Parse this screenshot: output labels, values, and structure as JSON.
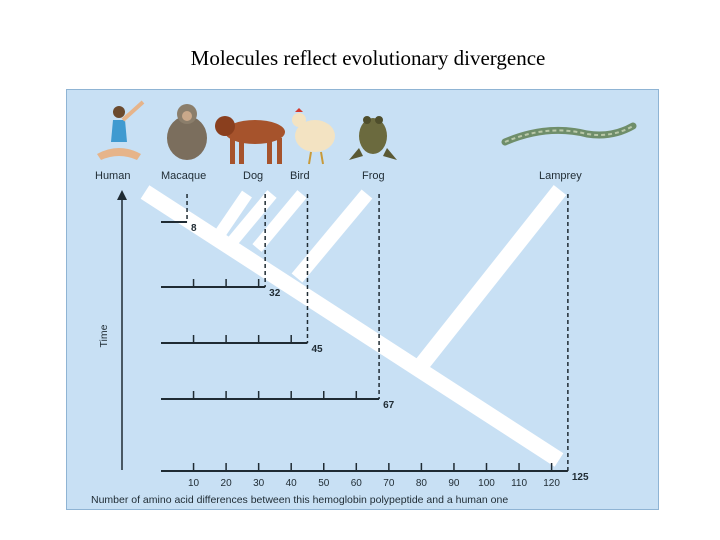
{
  "slide": {
    "title": "Molecules reflect evolutionary divergence"
  },
  "chart_data": {
    "type": "diagram",
    "species": [
      "Human",
      "Macaque",
      "Dog",
      "Bird",
      "Frog",
      "Lamprey"
    ],
    "differences": [
      {
        "species": "Macaque",
        "value": 8,
        "label": "8"
      },
      {
        "species": "Dog",
        "value": 32,
        "label": "32"
      },
      {
        "species": "Bird",
        "value": 45,
        "label": "45"
      },
      {
        "species": "Frog",
        "value": 67,
        "label": "67"
      },
      {
        "species": "Lamprey",
        "value": 125,
        "label": "125"
      }
    ],
    "x_ticks": [
      "10",
      "20",
      "30",
      "40",
      "50",
      "60",
      "70",
      "80",
      "90",
      "100",
      "110",
      "120"
    ],
    "xlabel": "Number of amino acid differences between this hemoglobin polypeptide and a human one",
    "ylabel": "Time",
    "xlim": [
      0,
      125
    ]
  },
  "colors": {
    "background": "#c8e0f4",
    "tree": "#ffffff",
    "lines": "#1f2b33"
  },
  "icons": [
    "human-icon",
    "macaque-icon",
    "dog-icon",
    "bird-icon",
    "frog-icon",
    "lamprey-icon"
  ]
}
